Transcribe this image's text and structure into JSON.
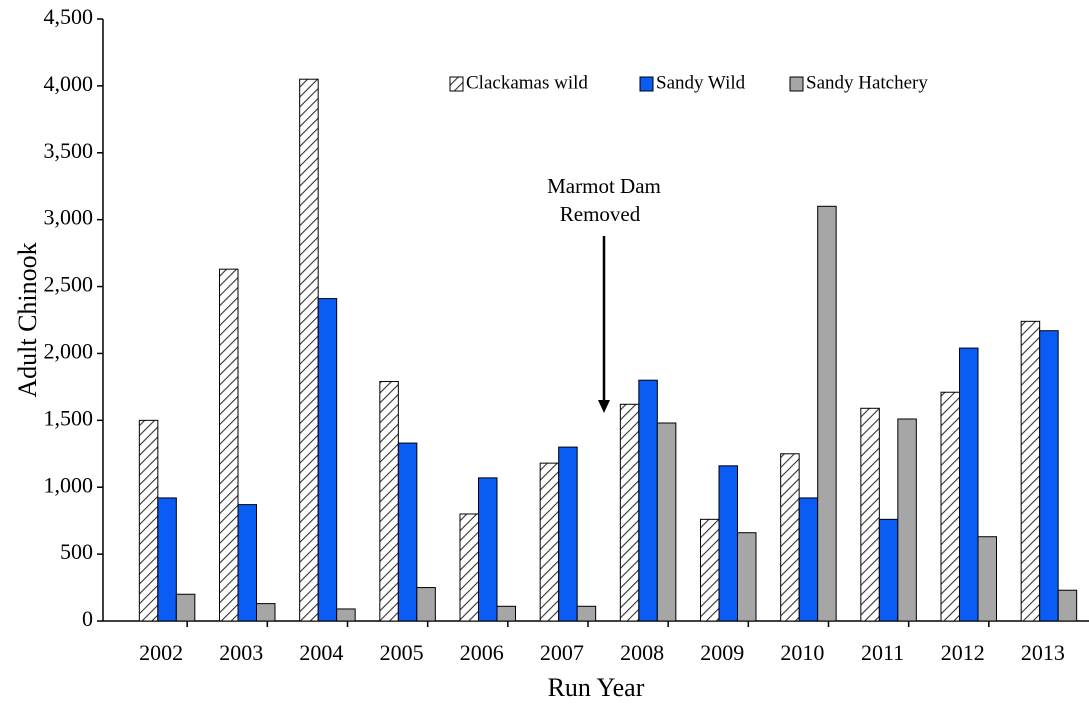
{
  "chart_data": {
    "type": "bar",
    "x_label": "Run Year",
    "y_label": "Adult Chinook",
    "annotation": [
      "Marmot Dam",
      "Removed"
    ],
    "categories": [
      "2002",
      "2003",
      "2004",
      "2005",
      "2006",
      "2007",
      "2008",
      "2009",
      "2010",
      "2011",
      "2012",
      "2013"
    ],
    "series": [
      {
        "name": "Clackamas wild",
        "color": "#ffffff",
        "pattern": "hatch",
        "values": [
          1500,
          2630,
          4050,
          1790,
          800,
          1180,
          1620,
          760,
          1250,
          1590,
          1710,
          2240
        ]
      },
      {
        "name": "Sandy Wild",
        "color": "#0a5cf5",
        "values": [
          920,
          870,
          2410,
          1330,
          1070,
          1300,
          1800,
          1160,
          920,
          760,
          2040,
          2170
        ]
      },
      {
        "name": "Sandy Hatchery",
        "color": "#a6a6a6",
        "values": [
          200,
          130,
          90,
          250,
          110,
          110,
          1480,
          660,
          3100,
          1510,
          630,
          230
        ]
      }
    ],
    "ylim": [
      0,
      4500
    ],
    "yticks": [
      0,
      500,
      {
        "value": 1000,
        "label": "1,000"
      },
      {
        "value": 1500,
        "label": "1,500"
      },
      {
        "value": 2000,
        "label": "2,000"
      },
      {
        "value": 2500,
        "label": "2,500"
      },
      {
        "value": 3000,
        "label": "3,000"
      },
      {
        "value": 3500,
        "label": "3,500"
      },
      {
        "value": 4000,
        "label": "4,000"
      },
      {
        "value": 4500,
        "label": "4,500"
      }
    ],
    "grid": false,
    "legend": "top"
  }
}
